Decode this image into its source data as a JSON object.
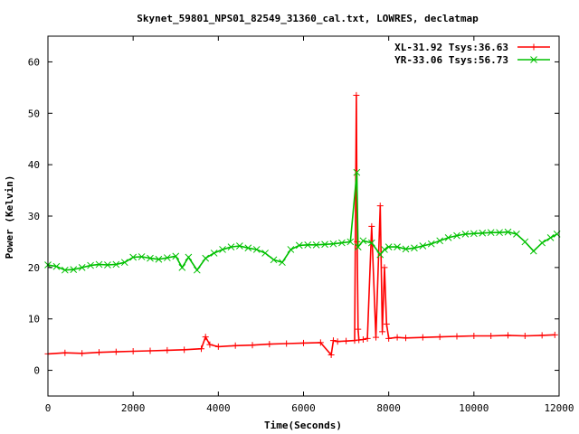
{
  "chart_data": {
    "type": "line",
    "title": "Skynet_59801_NPS01_82549_31360_cal.txt, LOWRES, declatmap",
    "xlabel": "Time(Seconds)",
    "ylabel": "Power (Kelvin)",
    "xlim": [
      0,
      12000
    ],
    "ylim": [
      -5,
      65
    ],
    "xticks": [
      0,
      2000,
      4000,
      6000,
      8000,
      10000,
      12000
    ],
    "yticks": [
      0,
      10,
      20,
      30,
      40,
      50,
      60
    ],
    "grid": false,
    "legend_position": "top-right",
    "series": [
      {
        "name": "XL-31.92 Tsys:36.63",
        "color": "#ff0000",
        "marker": "plus",
        "x": [
          0,
          400,
          800,
          1200,
          1600,
          2000,
          2400,
          2800,
          3200,
          3600,
          3700,
          3800,
          4000,
          4400,
          4800,
          5200,
          5600,
          6000,
          6400,
          6650,
          6700,
          6800,
          7000,
          7200,
          7240,
          7260,
          7280,
          7300,
          7400,
          7500,
          7600,
          7700,
          7800,
          7850,
          7900,
          7950,
          8000,
          8200,
          8400,
          8800,
          9200,
          9600,
          10000,
          10400,
          10800,
          11200,
          11600,
          11900
        ],
        "y": [
          3.2,
          3.4,
          3.3,
          3.5,
          3.6,
          3.7,
          3.8,
          3.9,
          4.0,
          4.2,
          6.5,
          5.0,
          4.6,
          4.8,
          4.9,
          5.1,
          5.2,
          5.3,
          5.4,
          3.0,
          5.8,
          5.6,
          5.7,
          5.8,
          53.5,
          25.0,
          8.0,
          5.9,
          6.0,
          6.2,
          28.0,
          6.4,
          32.0,
          7.5,
          20.0,
          9.0,
          6.2,
          6.4,
          6.3,
          6.4,
          6.5,
          6.6,
          6.7,
          6.7,
          6.8,
          6.7,
          6.8,
          6.9
        ]
      },
      {
        "name": "YR-33.06 Tsys:56.73",
        "color": "#00c000",
        "marker": "cross",
        "x": [
          0,
          200,
          400,
          600,
          800,
          1000,
          1200,
          1400,
          1600,
          1800,
          2000,
          2200,
          2400,
          2600,
          2800,
          3000,
          3150,
          3300,
          3500,
          3700,
          3900,
          4100,
          4300,
          4500,
          4700,
          4900,
          5100,
          5300,
          5500,
          5700,
          5900,
          6100,
          6300,
          6500,
          6700,
          6900,
          7100,
          7250,
          7280,
          7400,
          7600,
          7800,
          7900,
          8000,
          8200,
          8400,
          8600,
          8800,
          9000,
          9200,
          9400,
          9600,
          9800,
          10000,
          10200,
          10400,
          10600,
          10800,
          11000,
          11200,
          11400,
          11600,
          11800,
          11950
        ],
        "y": [
          20.5,
          20.2,
          19.5,
          19.6,
          20.0,
          20.4,
          20.6,
          20.5,
          20.6,
          21.0,
          22.0,
          22.1,
          21.8,
          21.6,
          21.9,
          22.2,
          20.0,
          22.0,
          19.5,
          21.8,
          22.8,
          23.5,
          24.0,
          24.2,
          23.8,
          23.5,
          22.8,
          21.5,
          21.0,
          23.5,
          24.3,
          24.4,
          24.4,
          24.5,
          24.6,
          24.8,
          25.0,
          38.5,
          24.0,
          25.2,
          24.8,
          22.5,
          23.5,
          24.0,
          24.0,
          23.6,
          23.8,
          24.2,
          24.6,
          25.2,
          25.8,
          26.2,
          26.5,
          26.6,
          26.7,
          26.8,
          26.8,
          26.9,
          26.5,
          25.0,
          23.2,
          24.8,
          25.8,
          26.5
        ]
      }
    ]
  }
}
